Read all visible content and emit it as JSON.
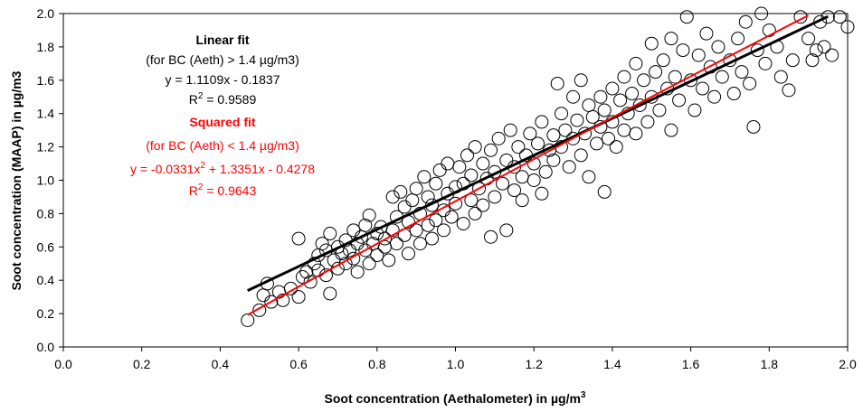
{
  "chart_data": {
    "type": "scatter",
    "title": "",
    "xlabel": "Soot concentration (Aethalometer) in µg/m",
    "xlabel_sup": "3",
    "ylabel": "Soot concentration (MAAP) in µg/m3",
    "xlim": [
      0.0,
      2.0
    ],
    "ylim": [
      0.0,
      2.0
    ],
    "x_ticks": [
      "0.0",
      "0.2",
      "0.4",
      "0.6",
      "0.8",
      "1.0",
      "1.2",
      "1.4",
      "1.6",
      "1.8",
      "2.0"
    ],
    "y_ticks": [
      "0.0",
      "0.2",
      "0.4",
      "0.6",
      "0.8",
      "1.0",
      "1.2",
      "1.4",
      "1.6",
      "1.8",
      "2.0"
    ],
    "grid": false,
    "legend": "none",
    "marker": "open-circle",
    "colors": {
      "points": "#000000",
      "linear_fit": "#000000",
      "squared_fit": "#ff0000"
    },
    "fits": [
      {
        "name": "Linear fit",
        "kind": "linear",
        "slope": 1.1109,
        "intercept": -0.1837,
        "x_range": [
          0.47,
          1.95
        ],
        "color": "#000000"
      },
      {
        "name": "Squared fit",
        "kind": "quadratic",
        "a": -0.0331,
        "b": 1.3351,
        "c": -0.4278,
        "x_range": [
          0.47,
          1.9
        ],
        "color": "#ff0000"
      }
    ],
    "annotations": {
      "linear": {
        "title": "Linear fit",
        "condition": "(for BC (Aeth) > 1.4 µg/m3)",
        "equation": "y = 1.1109x - 0.1837",
        "r2_label": "R",
        "r2_sup": "2",
        "r2_value": " = 0.9589"
      },
      "squared": {
        "title": "Squared fit",
        "condition": "(for BC (Aeth) < 1.4 µg/m3)",
        "eq_part1": "y = -0.0331x",
        "eq_sup": "2",
        "eq_part2": " + 1.3351x - 0.4278",
        "r2_label": "R",
        "r2_sup": "2",
        "r2_value": " = 0.9643"
      }
    },
    "points": [
      [
        0.47,
        0.16
      ],
      [
        0.5,
        0.22
      ],
      [
        0.51,
        0.31
      ],
      [
        0.52,
        0.38
      ],
      [
        0.53,
        0.27
      ],
      [
        0.55,
        0.33
      ],
      [
        0.56,
        0.28
      ],
      [
        0.58,
        0.35
      ],
      [
        0.6,
        0.3
      ],
      [
        0.6,
        0.65
      ],
      [
        0.61,
        0.42
      ],
      [
        0.62,
        0.45
      ],
      [
        0.63,
        0.39
      ],
      [
        0.64,
        0.5
      ],
      [
        0.65,
        0.55
      ],
      [
        0.65,
        0.46
      ],
      [
        0.66,
        0.62
      ],
      [
        0.67,
        0.58
      ],
      [
        0.67,
        0.43
      ],
      [
        0.68,
        0.32
      ],
      [
        0.68,
        0.68
      ],
      [
        0.69,
        0.52
      ],
      [
        0.7,
        0.6
      ],
      [
        0.7,
        0.47
      ],
      [
        0.71,
        0.56
      ],
      [
        0.72,
        0.64
      ],
      [
        0.72,
        0.5
      ],
      [
        0.73,
        0.58
      ],
      [
        0.74,
        0.7
      ],
      [
        0.74,
        0.53
      ],
      [
        0.75,
        0.62
      ],
      [
        0.75,
        0.45
      ],
      [
        0.76,
        0.66
      ],
      [
        0.77,
        0.58
      ],
      [
        0.77,
        0.73
      ],
      [
        0.78,
        0.5
      ],
      [
        0.78,
        0.79
      ],
      [
        0.79,
        0.62
      ],
      [
        0.8,
        0.68
      ],
      [
        0.8,
        0.55
      ],
      [
        0.81,
        0.72
      ],
      [
        0.82,
        0.6
      ],
      [
        0.82,
        0.65
      ],
      [
        0.83,
        0.52
      ],
      [
        0.84,
        0.7
      ],
      [
        0.84,
        0.9
      ],
      [
        0.85,
        0.78
      ],
      [
        0.85,
        0.62
      ],
      [
        0.86,
        0.93
      ],
      [
        0.87,
        0.67
      ],
      [
        0.87,
        0.84
      ],
      [
        0.88,
        0.56
      ],
      [
        0.88,
        0.75
      ],
      [
        0.89,
        0.88
      ],
      [
        0.9,
        0.7
      ],
      [
        0.9,
        0.95
      ],
      [
        0.91,
        0.62
      ],
      [
        0.91,
        0.8
      ],
      [
        0.92,
        1.02
      ],
      [
        0.93,
        0.73
      ],
      [
        0.93,
        0.9
      ],
      [
        0.94,
        0.65
      ],
      [
        0.94,
        0.85
      ],
      [
        0.95,
        0.98
      ],
      [
        0.95,
        0.76
      ],
      [
        0.96,
        1.06
      ],
      [
        0.97,
        0.82
      ],
      [
        0.97,
        0.7
      ],
      [
        0.98,
        0.92
      ],
      [
        0.98,
        1.1
      ],
      [
        0.99,
        0.78
      ],
      [
        1.0,
        0.96
      ],
      [
        1.0,
        0.86
      ],
      [
        1.01,
        1.08
      ],
      [
        1.02,
        0.74
      ],
      [
        1.02,
        0.98
      ],
      [
        1.03,
        1.15
      ],
      [
        1.04,
        0.88
      ],
      [
        1.04,
        1.03
      ],
      [
        1.05,
        0.8
      ],
      [
        1.05,
        1.2
      ],
      [
        1.06,
        0.95
      ],
      [
        1.07,
        1.1
      ],
      [
        1.07,
        0.85
      ],
      [
        1.08,
        1.01
      ],
      [
        1.09,
        0.66
      ],
      [
        1.09,
        1.18
      ],
      [
        1.1,
        0.9
      ],
      [
        1.1,
        1.05
      ],
      [
        1.11,
        1.25
      ],
      [
        1.12,
        0.98
      ],
      [
        1.13,
        0.7
      ],
      [
        1.13,
        1.12
      ],
      [
        1.14,
        1.3
      ],
      [
        1.15,
        0.94
      ],
      [
        1.15,
        1.08
      ],
      [
        1.16,
        1.2
      ],
      [
        1.17,
        0.88
      ],
      [
        1.17,
        1.02
      ],
      [
        1.18,
        1.15
      ],
      [
        1.19,
        1.28
      ],
      [
        1.2,
        1.0
      ],
      [
        1.2,
        1.1
      ],
      [
        1.21,
        1.22
      ],
      [
        1.22,
        0.92
      ],
      [
        1.22,
        1.35
      ],
      [
        1.23,
        1.05
      ],
      [
        1.24,
        1.18
      ],
      [
        1.25,
        1.27
      ],
      [
        1.25,
        1.12
      ],
      [
        1.26,
        1.58
      ],
      [
        1.27,
        1.4
      ],
      [
        1.27,
        1.2
      ],
      [
        1.28,
        1.3
      ],
      [
        1.29,
        1.08
      ],
      [
        1.3,
        1.25
      ],
      [
        1.3,
        1.5
      ],
      [
        1.31,
        1.36
      ],
      [
        1.32,
        1.15
      ],
      [
        1.32,
        1.6
      ],
      [
        1.33,
        1.28
      ],
      [
        1.34,
        1.45
      ],
      [
        1.34,
        1.02
      ],
      [
        1.35,
        1.38
      ],
      [
        1.36,
        1.22
      ],
      [
        1.37,
        1.5
      ],
      [
        1.37,
        1.32
      ],
      [
        1.38,
        0.93
      ],
      [
        1.38,
        1.42
      ],
      [
        1.39,
        1.25
      ],
      [
        1.4,
        1.55
      ],
      [
        1.4,
        1.35
      ],
      [
        1.41,
        1.2
      ],
      [
        1.42,
        1.48
      ],
      [
        1.43,
        1.62
      ],
      [
        1.43,
        1.3
      ],
      [
        1.44,
        1.4
      ],
      [
        1.45,
        1.52
      ],
      [
        1.46,
        1.28
      ],
      [
        1.46,
        1.7
      ],
      [
        1.47,
        1.45
      ],
      [
        1.48,
        1.6
      ],
      [
        1.49,
        1.35
      ],
      [
        1.5,
        1.82
      ],
      [
        1.5,
        1.5
      ],
      [
        1.51,
        1.65
      ],
      [
        1.52,
        1.42
      ],
      [
        1.53,
        1.72
      ],
      [
        1.54,
        1.55
      ],
      [
        1.55,
        1.3
      ],
      [
        1.55,
        1.85
      ],
      [
        1.56,
        1.62
      ],
      [
        1.57,
        1.48
      ],
      [
        1.58,
        1.78
      ],
      [
        1.59,
        1.98
      ],
      [
        1.6,
        1.6
      ],
      [
        1.61,
        1.42
      ],
      [
        1.62,
        1.75
      ],
      [
        1.63,
        1.55
      ],
      [
        1.64,
        1.88
      ],
      [
        1.65,
        1.68
      ],
      [
        1.66,
        1.5
      ],
      [
        1.67,
        1.8
      ],
      [
        1.68,
        1.62
      ],
      [
        1.7,
        1.72
      ],
      [
        1.71,
        1.52
      ],
      [
        1.72,
        1.85
      ],
      [
        1.73,
        1.65
      ],
      [
        1.74,
        1.95
      ],
      [
        1.75,
        1.58
      ],
      [
        1.76,
        1.32
      ],
      [
        1.77,
        1.78
      ],
      [
        1.78,
        2.0
      ],
      [
        1.79,
        1.7
      ],
      [
        1.8,
        1.9
      ],
      [
        1.82,
        1.8
      ],
      [
        1.83,
        1.62
      ],
      [
        1.85,
        1.54
      ],
      [
        1.86,
        1.72
      ],
      [
        1.88,
        1.98
      ],
      [
        1.9,
        1.85
      ],
      [
        1.91,
        1.72
      ],
      [
        1.92,
        1.78
      ],
      [
        1.93,
        1.95
      ],
      [
        1.94,
        1.8
      ],
      [
        1.95,
        1.98
      ],
      [
        1.96,
        1.75
      ],
      [
        1.98,
        1.98
      ],
      [
        2.0,
        1.92
      ]
    ]
  }
}
